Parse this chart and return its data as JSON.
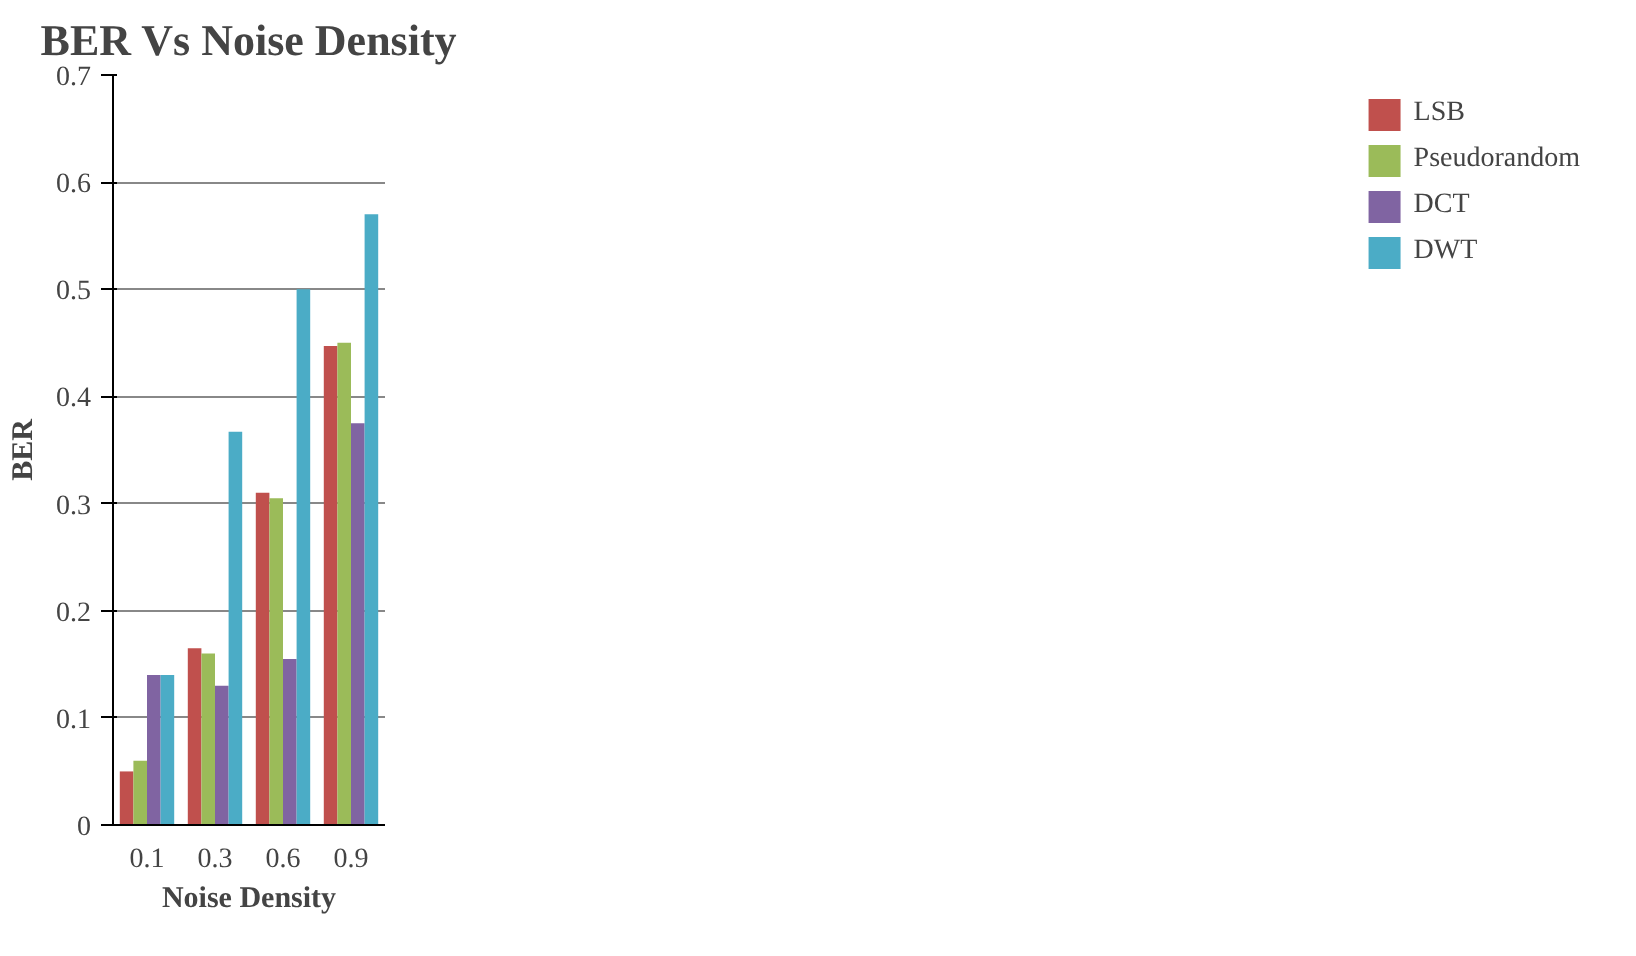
{
  "chart_data": {
    "type": "bar",
    "title": "BER Vs Noise Density",
    "xlabel": "Noise Density",
    "ylabel": "BER",
    "categories": [
      "0.1",
      "0.3",
      "0.6",
      "0.9"
    ],
    "series": [
      {
        "name": "LSB",
        "color": "#c0504d",
        "values": [
          0.05,
          0.165,
          0.31,
          0.447
        ]
      },
      {
        "name": "Pseudorandom",
        "color": "#9bbb59",
        "values": [
          0.06,
          0.16,
          0.305,
          0.45
        ]
      },
      {
        "name": "DCT",
        "color": "#8064a2",
        "values": [
          0.14,
          0.13,
          0.155,
          0.375
        ]
      },
      {
        "name": "DWT",
        "color": "#4bacc6",
        "values": [
          0.14,
          0.367,
          0.5,
          0.57
        ]
      }
    ],
    "ylim": [
      0,
      0.7
    ],
    "yticks": [
      0,
      0.1,
      0.2,
      0.3,
      0.4,
      0.5,
      0.6,
      0.7
    ],
    "grid": "y",
    "legend": "right"
  }
}
